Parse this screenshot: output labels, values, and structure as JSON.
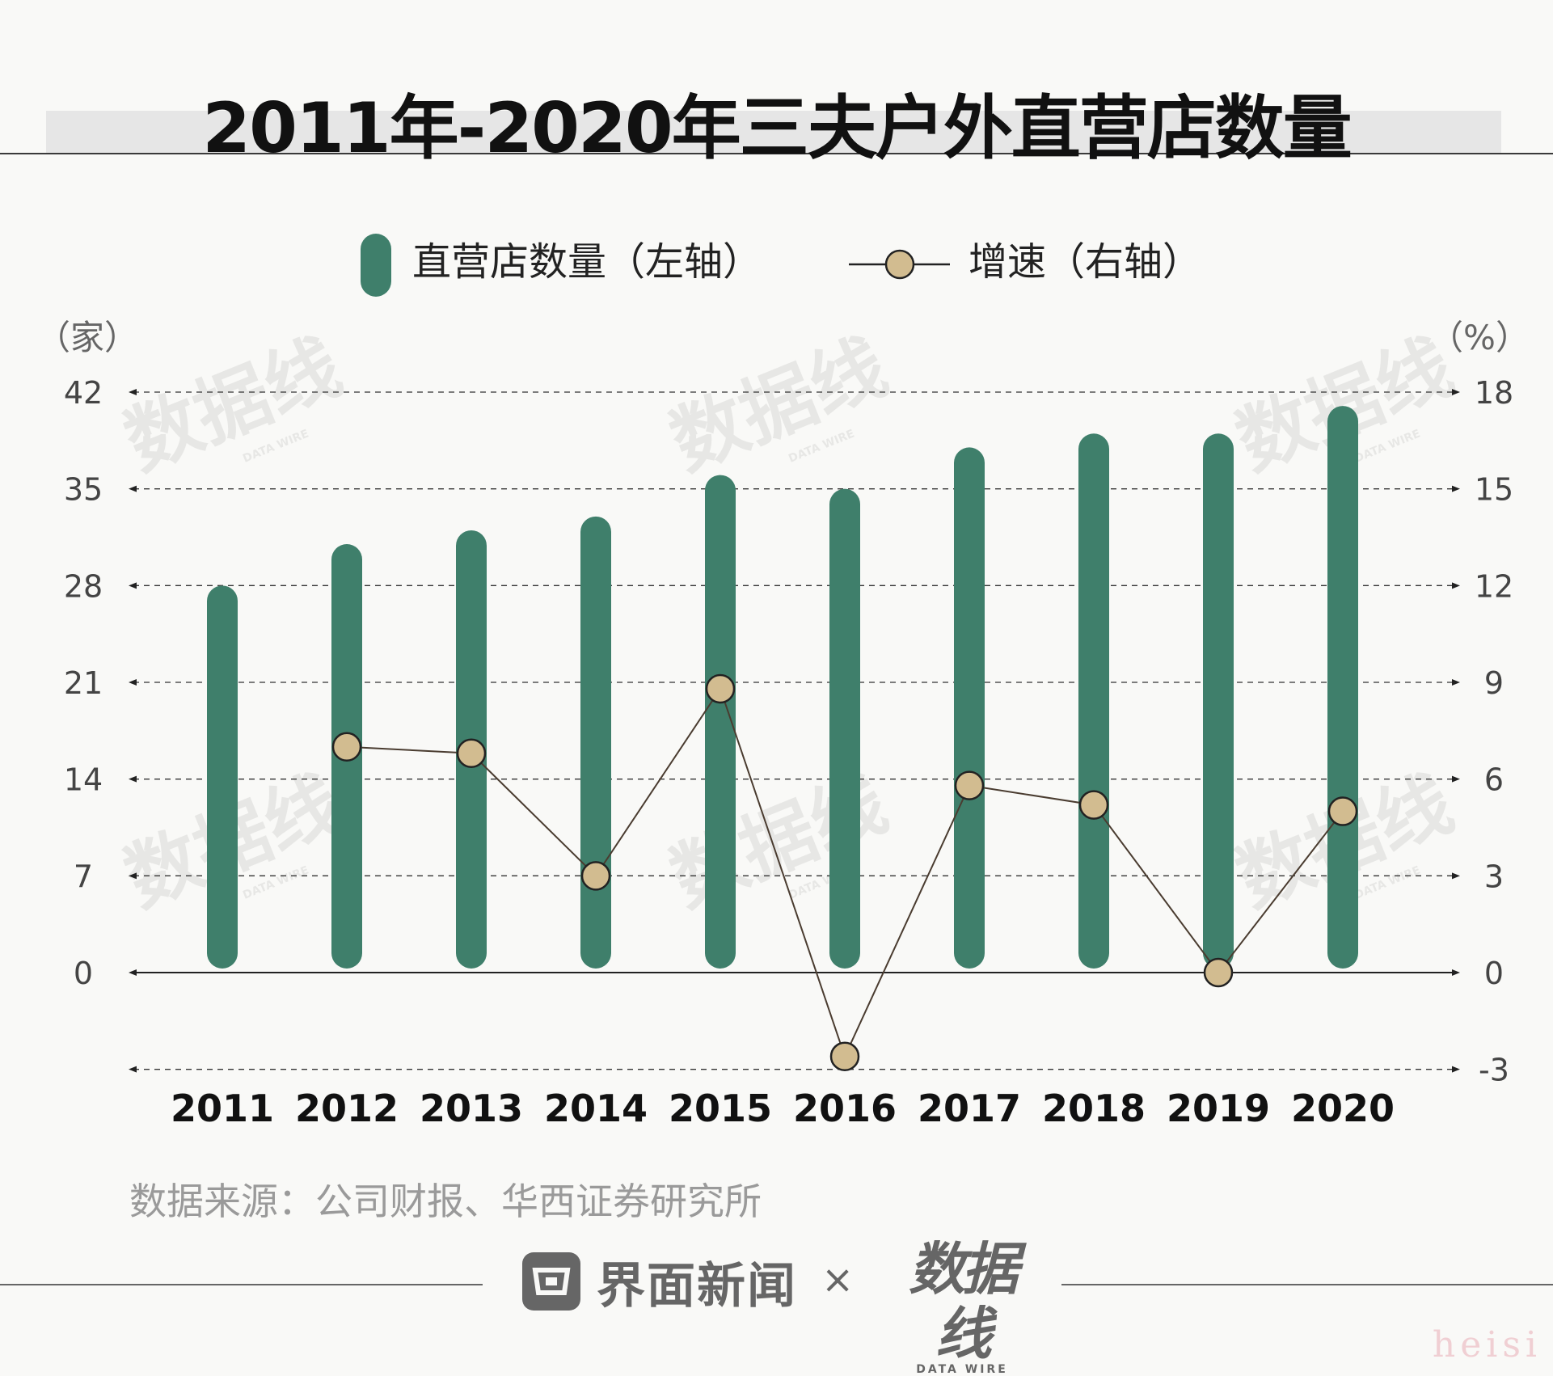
{
  "title": "2011年-2020年三夫户外直营店数量",
  "source": "数据来源：公司财报、华西证券研究所",
  "footer": {
    "brand1": "界面新闻",
    "times": "×",
    "brand2": "数据线",
    "brand2_sub": "DATA WIRE"
  },
  "watermark": {
    "logo": "数据线",
    "sub": "DATA WIRE"
  },
  "corner_mark": "heisi",
  "colors": {
    "bar": "#3f7f6b",
    "line": "#4a3c30",
    "marker": "#d2bc90",
    "background": "#f9f9f7"
  },
  "chart_data": {
    "type": "bar",
    "categories": [
      "2011",
      "2012",
      "2013",
      "2014",
      "2015",
      "2016",
      "2017",
      "2018",
      "2019",
      "2020"
    ],
    "series": [
      {
        "name": "直营店数量（左轴）",
        "axis": "left",
        "type": "bar",
        "values": [
          28,
          31,
          32,
          33,
          36,
          35,
          38,
          39,
          39,
          41
        ]
      },
      {
        "name": "增速（右轴）",
        "axis": "right",
        "type": "line",
        "values": [
          null,
          7.0,
          6.8,
          3.0,
          8.8,
          -2.6,
          5.8,
          5.2,
          0.0,
          5.0
        ]
      }
    ],
    "left_axis": {
      "unit": "（家）",
      "ylim": [
        -7,
        42
      ],
      "ticks": [
        0,
        7,
        14,
        21,
        28,
        35,
        42
      ]
    },
    "right_axis": {
      "unit": "（%）",
      "ylim": [
        -3,
        18
      ],
      "ticks": [
        -3,
        0,
        3,
        6,
        9,
        12,
        15,
        18
      ]
    },
    "grid": true,
    "legend": "top-center"
  }
}
